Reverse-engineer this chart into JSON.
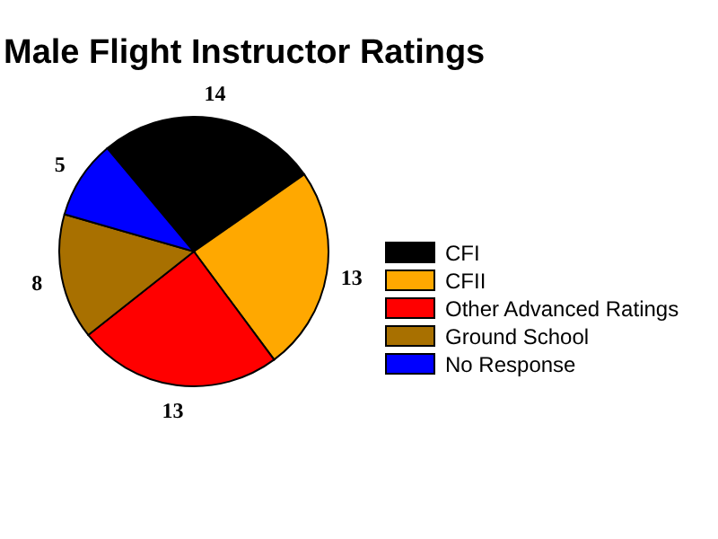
{
  "chart_data": {
    "type": "pie",
    "title": "Male Flight Instructor Ratings",
    "categories": [
      "CFI",
      "CFII",
      "Other Advanced Ratings",
      "Ground School",
      "No Response"
    ],
    "values": [
      14,
      13,
      13,
      8,
      5
    ],
    "colors": [
      "#000000",
      "#ffa800",
      "#ff0000",
      "#a87000",
      "#0000ff"
    ],
    "data_labels": true,
    "legend": "right"
  }
}
